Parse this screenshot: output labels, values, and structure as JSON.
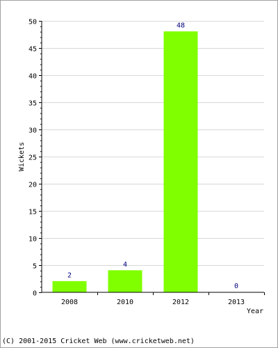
{
  "chart_data": {
    "type": "bar",
    "categories": [
      "2008",
      "2010",
      "2012",
      "2013"
    ],
    "values": [
      2,
      4,
      48,
      0
    ],
    "data_labels": [
      "2",
      "4",
      "48",
      "0"
    ],
    "xlabel": "Year",
    "ylabel": "Wickets",
    "ylim": [
      0,
      50
    ],
    "y_ticks": [
      0,
      5,
      10,
      15,
      20,
      25,
      30,
      35,
      40,
      45,
      50
    ],
    "grid": true,
    "legend": "none",
    "colors": {
      "bar": "#80ff00",
      "bar_edge": "#80ff00",
      "data_label": "#000080",
      "grid": "#d8d8d8",
      "axis": "#000000",
      "text": "#000000"
    }
  },
  "footer": {
    "text": "(C) 2001-2015 Cricket Web (www.cricketweb.net)"
  }
}
